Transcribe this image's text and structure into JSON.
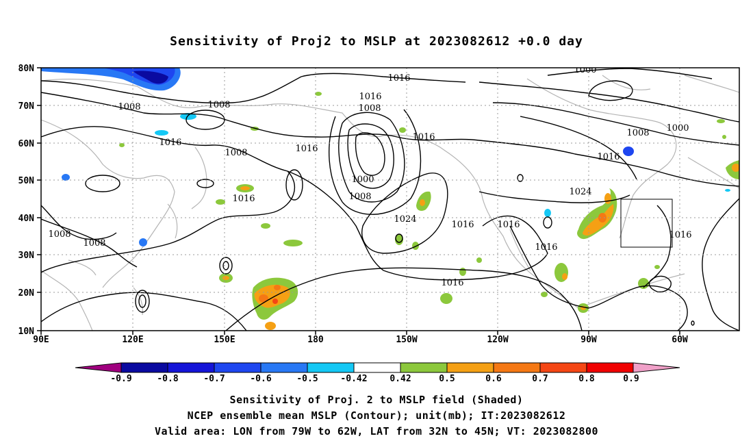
{
  "title": "Sensitivity of Proj2 to MSLP at 2023082612 +0.0 day",
  "lat_labels": [
    "80N",
    "70N",
    "60N",
    "50N",
    "40N",
    "30N",
    "20N",
    "10N"
  ],
  "lon_labels": [
    "90E",
    "120E",
    "150E",
    "180",
    "150W",
    "120W",
    "90W",
    "60W"
  ],
  "contour_labels": [
    "1016",
    "1016",
    "1008",
    "1008",
    "1008",
    "1016",
    "1008",
    "1016",
    "1016",
    "1000",
    "1008",
    "1016",
    "1024",
    "1016",
    "1016",
    "1008",
    "1008",
    "1016",
    "1016",
    "1024",
    "1016",
    "1000",
    "1008",
    "1000",
    "1016"
  ],
  "colorbar": {
    "labels": [
      "-0.9",
      "-0.8",
      "-0.7",
      "-0.6",
      "-0.5",
      "-0.42",
      "0.42",
      "0.5",
      "0.6",
      "0.7",
      "0.8",
      "0.9"
    ],
    "colors": [
      "#a0007f",
      "#0a0aa0",
      "#1414d8",
      "#1e46f0",
      "#2878f5",
      "#14c8f5",
      "#ffffff",
      "#8cc83c",
      "#f5a014",
      "#f57814",
      "#f54614",
      "#f00000",
      "#f0a0c8"
    ]
  },
  "captions": [
    "Sensitivity of Proj. 2 to MSLP field (Shaded)",
    "NCEP ensemble mean MSLP (Contour); unit(mb); IT:2023082612",
    "Valid area: LON from 79W to 62W, LAT from 32N to 45N; VT: 2023082800"
  ]
}
